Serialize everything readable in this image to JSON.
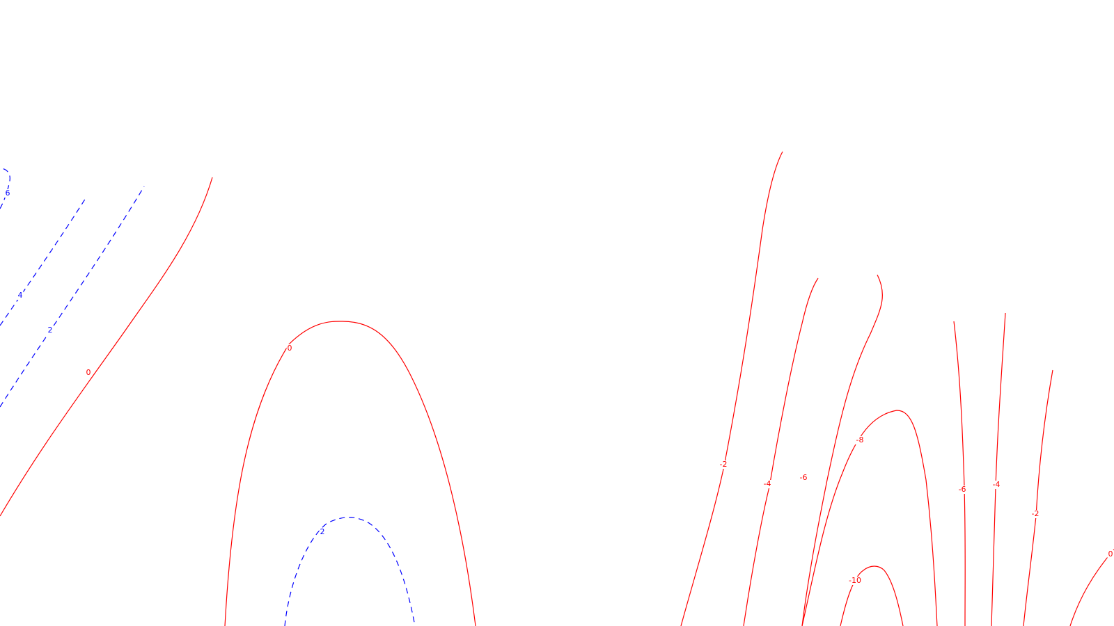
{
  "chart_data": {
    "type": "contour",
    "title": "",
    "xlabel": "",
    "ylabel": "",
    "grid": false,
    "legend": "none",
    "colors": {
      "positive": "#0000ff",
      "nonpositive": "#ff0000"
    },
    "line_styles": {
      "positive": "dashed",
      "nonpositive": "solid"
    },
    "contours": [
      {
        "level": 6,
        "label": "6",
        "style": "dashed",
        "color": "#0000ff"
      },
      {
        "level": 4,
        "label": "4",
        "style": "dashed",
        "color": "#0000ff"
      },
      {
        "level": 2,
        "label": "2",
        "style": "dashed",
        "color": "#0000ff"
      },
      {
        "level": 0,
        "label": "0",
        "style": "solid",
        "color": "#ff0000"
      },
      {
        "level": 0,
        "label": "0",
        "style": "solid",
        "color": "#ff0000"
      },
      {
        "level": 2,
        "label": "2",
        "style": "dashed",
        "color": "#0000ff"
      },
      {
        "level": -2,
        "label": "-2",
        "style": "solid",
        "color": "#ff0000"
      },
      {
        "level": -4,
        "label": "-4",
        "style": "solid",
        "color": "#ff0000"
      },
      {
        "level": -6,
        "label": "-6",
        "style": "solid",
        "color": "#ff0000"
      },
      {
        "level": -8,
        "label": "-8",
        "style": "solid",
        "color": "#ff0000"
      },
      {
        "level": -10,
        "label": "-10",
        "style": "solid",
        "color": "#ff0000"
      },
      {
        "level": -6,
        "label": "-6",
        "style": "solid",
        "color": "#ff0000"
      },
      {
        "level": -4,
        "label": "-4",
        "style": "solid",
        "color": "#ff0000"
      },
      {
        "level": -2,
        "label": "-2",
        "style": "solid",
        "color": "#ff0000"
      },
      {
        "level": 0,
        "label": "0",
        "style": "solid",
        "color": "#ff0000"
      }
    ]
  }
}
